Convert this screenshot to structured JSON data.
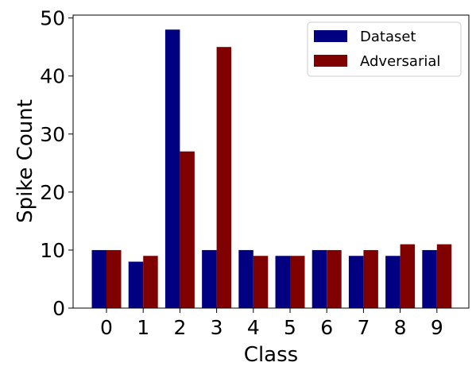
{
  "chart_data": {
    "type": "bar",
    "xlabel": "Class",
    "ylabel": "Spike Count",
    "categories": [
      "0",
      "1",
      "2",
      "3",
      "4",
      "5",
      "6",
      "7",
      "8",
      "9"
    ],
    "series": [
      {
        "name": "Dataset",
        "color": "#000080",
        "values": [
          10,
          8,
          48,
          10,
          10,
          9,
          10,
          9,
          9,
          10
        ]
      },
      {
        "name": "Adversarial",
        "color": "#800000",
        "values": [
          10,
          9,
          27,
          45,
          9,
          9,
          10,
          10,
          11,
          11
        ]
      }
    ],
    "ylim": [
      0,
      50.5
    ],
    "yticks": [
      0,
      10,
      20,
      30,
      40,
      50
    ],
    "grid": false,
    "legend_position": "top-right"
  }
}
